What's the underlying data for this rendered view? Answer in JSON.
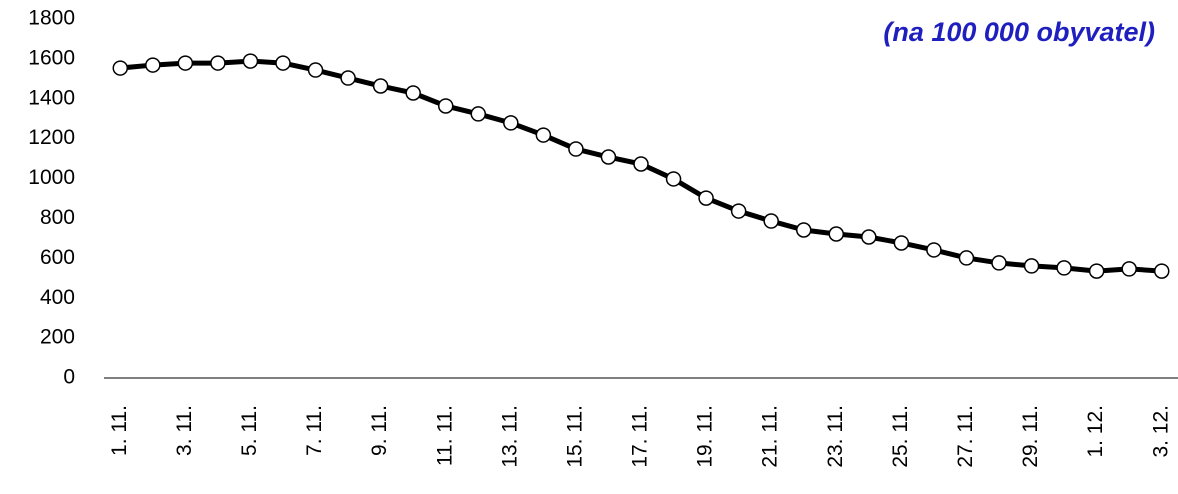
{
  "chart_data": {
    "type": "line",
    "subtitle": "(na 100 000 obyvatel)",
    "categories": [
      "1. 11.",
      null,
      "3. 11.",
      null,
      "5. 11.",
      null,
      "7. 11.",
      null,
      "9. 11.",
      null,
      "11. 11.",
      null,
      "13. 11.",
      null,
      "15. 11.",
      null,
      "17. 11.",
      null,
      "19. 11.",
      null,
      "21. 11.",
      null,
      "23. 11.",
      null,
      "25. 11.",
      null,
      "27. 11.",
      null,
      "29. 11.",
      null,
      "1. 12.",
      null,
      "3. 12."
    ],
    "series": [
      {
        "name": "",
        "color": "#000000",
        "values": [
          1554,
          1569,
          1579,
          1579,
          1589,
          1579,
          1544,
          1504,
          1464,
          1429,
          1364,
          1324,
          1279,
          1218,
          1148,
          1108,
          1073,
          998,
          902,
          837,
          787,
          742,
          722,
          707,
          677,
          642,
          602,
          577,
          562,
          552,
          536,
          547,
          536
        ]
      }
    ],
    "ylim": [
      0,
      1800
    ],
    "yticks": [
      0,
      200,
      400,
      600,
      800,
      1000,
      1200,
      1400,
      1600,
      1800
    ],
    "grid": false
  }
}
